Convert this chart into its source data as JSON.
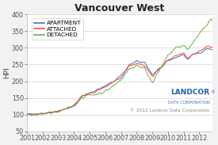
{
  "title": "Vancouver West",
  "ylabel": "HPI",
  "ylim": [
    50,
    400
  ],
  "yticks": [
    50,
    100,
    150,
    200,
    250,
    300,
    350,
    400
  ],
  "xlim": [
    2001.0,
    2012.83
  ],
  "xticks": [
    2001,
    2002,
    2003,
    2004,
    2005,
    2006,
    2007,
    2008,
    2009,
    2010,
    2011,
    2012
  ],
  "colors": {
    "apartment": "#4472C4",
    "attached": "#FF4444",
    "detached": "#70AD47"
  },
  "legend_labels": [
    "APARTMENT",
    "ATTACHED",
    "DETACHED"
  ],
  "copyright_text": "© 2012 Landcor Data Corporation",
  "background_color": "#F2F2F2",
  "plot_background": "#FFFFFF",
  "grid_color": "#D8D8D8",
  "title_fontsize": 9,
  "axis_fontsize": 6.5,
  "tick_fontsize": 5.8,
  "landcor_color": "#1F5FAD",
  "landcor_sub_color": "#888888",
  "n_points": 144,
  "x_start": 2001.0,
  "x_end": 2012.83,
  "apt_key": [
    [
      2001.0,
      100
    ],
    [
      2002.0,
      103
    ],
    [
      2003.0,
      110
    ],
    [
      2004.0,
      125
    ],
    [
      2004.5,
      155
    ],
    [
      2005.0,
      165
    ],
    [
      2005.5,
      175
    ],
    [
      2006.0,
      185
    ],
    [
      2006.5,
      200
    ],
    [
      2007.0,
      210
    ],
    [
      2007.5,
      248
    ],
    [
      2008.0,
      260
    ],
    [
      2008.5,
      255
    ],
    [
      2009.0,
      220
    ],
    [
      2009.5,
      238
    ],
    [
      2010.0,
      260
    ],
    [
      2010.5,
      272
    ],
    [
      2011.0,
      280
    ],
    [
      2011.25,
      265
    ],
    [
      2011.5,
      278
    ],
    [
      2012.0,
      285
    ],
    [
      2012.5,
      298
    ],
    [
      2012.83,
      295
    ]
  ],
  "att_key": [
    [
      2001.0,
      100
    ],
    [
      2002.0,
      102
    ],
    [
      2003.0,
      110
    ],
    [
      2004.0,
      128
    ],
    [
      2004.5,
      155
    ],
    [
      2005.0,
      162
    ],
    [
      2005.5,
      172
    ],
    [
      2006.0,
      183
    ],
    [
      2006.5,
      198
    ],
    [
      2007.0,
      215
    ],
    [
      2007.5,
      245
    ],
    [
      2008.0,
      255
    ],
    [
      2008.5,
      248
    ],
    [
      2009.0,
      215
    ],
    [
      2009.5,
      240
    ],
    [
      2010.0,
      262
    ],
    [
      2010.5,
      278
    ],
    [
      2011.0,
      285
    ],
    [
      2011.25,
      270
    ],
    [
      2011.5,
      280
    ],
    [
      2012.0,
      290
    ],
    [
      2012.5,
      305
    ],
    [
      2012.83,
      302
    ]
  ],
  "det_key": [
    [
      2001.0,
      100
    ],
    [
      2002.0,
      102
    ],
    [
      2003.0,
      108
    ],
    [
      2004.0,
      125
    ],
    [
      2004.5,
      152
    ],
    [
      2005.0,
      158
    ],
    [
      2005.5,
      162
    ],
    [
      2006.0,
      170
    ],
    [
      2006.5,
      185
    ],
    [
      2007.0,
      205
    ],
    [
      2007.5,
      235
    ],
    [
      2008.0,
      248
    ],
    [
      2008.5,
      238
    ],
    [
      2009.0,
      198
    ],
    [
      2009.5,
      235
    ],
    [
      2010.0,
      278
    ],
    [
      2010.5,
      300
    ],
    [
      2011.0,
      308
    ],
    [
      2011.25,
      295
    ],
    [
      2011.5,
      310
    ],
    [
      2012.0,
      340
    ],
    [
      2012.5,
      372
    ],
    [
      2012.7,
      385
    ],
    [
      2012.83,
      382
    ]
  ]
}
